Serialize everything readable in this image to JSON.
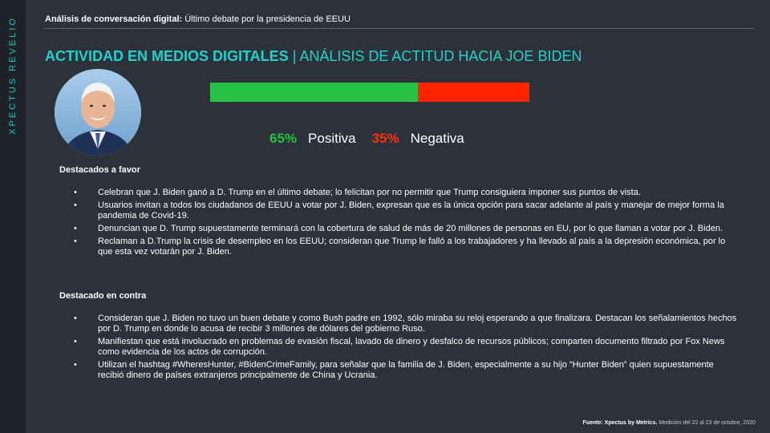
{
  "sidebar": {
    "brand": "XPECTUS REVELIO"
  },
  "header": {
    "label_bold": "Análisis de conversación digital:",
    "label_rest": " Último debate por la presidencia de EEUU"
  },
  "title": {
    "main": "ACTIVIDAD EN MEDIOS DIGITALES",
    "sub": " | ANÁLISIS DE ACTITUD HACIA JOE BIDEN"
  },
  "sentiment": {
    "positive_fraction": 0.65,
    "negative_fraction": 0.35,
    "positive_pct": "65%",
    "positive_label": "Positiva",
    "negative_pct": "35%",
    "negative_label": "Negativa",
    "positive_color": "#27c244",
    "negative_color": "#ff2400"
  },
  "favor": {
    "heading": "Destacados  a favor",
    "items": [
      "Celebran que J. Biden ganó a D. Trump en el último debate;  lo felicitan por no permitir que Trump consiguiera imponer sus puntos de vista.",
      "Usuarios invitan a todos los ciudadanos de EEUU a votar por J. Biden, expresan que es la única opción para sacar adelante al país y manejar de mejor forma la pandemia de Covid-19.",
      "Denuncian que D. Trump supuestamente terminará con la cobertura de salud de más de 20 millones de personas en EU, por lo que llaman a votar por J. Biden.",
      "Reclaman a D.Trump la crisis de desempleo en los EEUU; consideran que Trump le falló a los trabajadores y ha llevado al país a la depresión económica, por lo que esta vez votarán por J. Biden."
    ]
  },
  "contra": {
    "heading": "Destacado en contra",
    "items": [
      "Consideran que J. Biden no tuvo un buen debate y como Bush padre en 1992,  sólo miraba su reloj esperando a que finalizara.  Destacan los señalamientos hechos por D. Trump en donde lo acusa de recibir 3 millones de dólares del gobierno Ruso.",
      "Manifiestan que está involucrado en problemas de evasión fiscal, lavado de dinero y desfalco de recursos públicos; comparten documento filtrado por Fox News como evidencia de los actos de corrupción.",
      "Utilizan el hashtag #WheresHunter, #BidenCrimeFamily, para señalar que la familia de J. Biden, especialmente a su hijo “Hunter Biden” quien supuestamente recibió dinero de países extranjeros principalmente de China y Ucrania."
    ]
  },
  "footer": {
    "source_bold": "Fuente:  Xpectus by Metrics.",
    "source_rest": " Medición del 22 al 23 de octubre, 2020"
  },
  "colors": {
    "accent": "#22d0cc",
    "background": "#2c313a",
    "sidebar": "#1f2329"
  }
}
